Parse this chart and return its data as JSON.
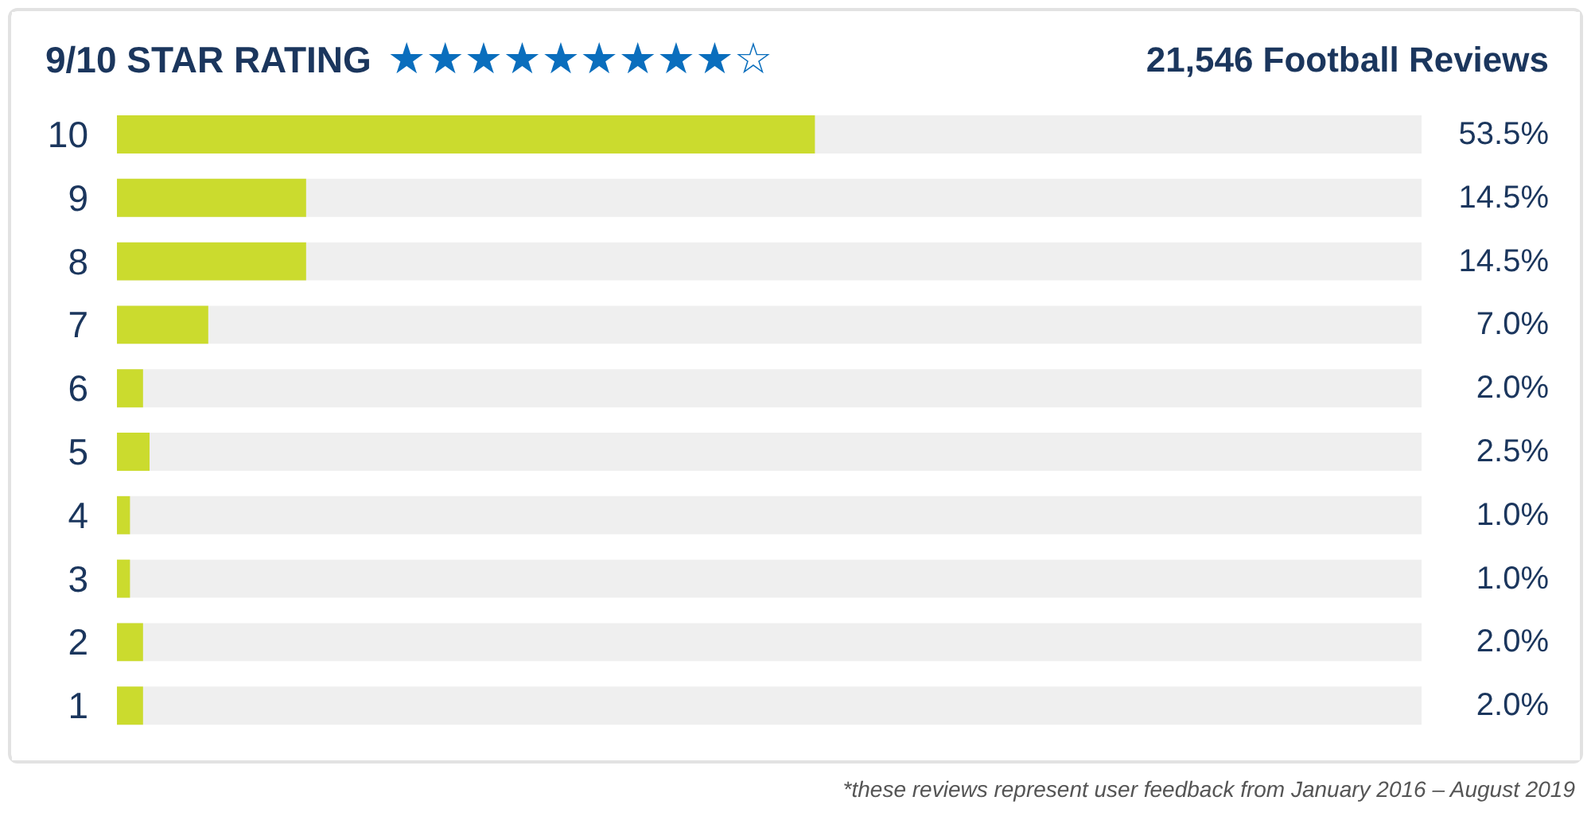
{
  "chart_data": {
    "type": "bar",
    "orientation": "horizontal",
    "title": "9/10 STAR RATING",
    "subtitle": "21,546 Football Reviews",
    "annotations": [
      "★★★★★★★★★☆",
      "*these reviews represent user feedback from January 2016 – August 2019"
    ],
    "categories": [
      "10",
      "9",
      "8",
      "7",
      "6",
      "5",
      "4",
      "3",
      "2",
      "1"
    ],
    "color": "#cbdb2e",
    "values": [
      53.5,
      14.5,
      14.5,
      7.0,
      2.0,
      2.5,
      1.0,
      1.0,
      2.0,
      2.0
    ],
    "value_labels": [
      "53.5%",
      "14.5%",
      "14.5%",
      "7.0%",
      "2.0%",
      "2.5%",
      "1.0%",
      "1.0%",
      "2.0%",
      "2.0%"
    ],
    "bands": [
      {
        "axis": "x",
        "from": 0,
        "to": 100,
        "color": "#efefef"
      }
    ],
    "xlim": [
      0,
      100
    ],
    "grid": false,
    "tick_labels": "y"
  }
}
